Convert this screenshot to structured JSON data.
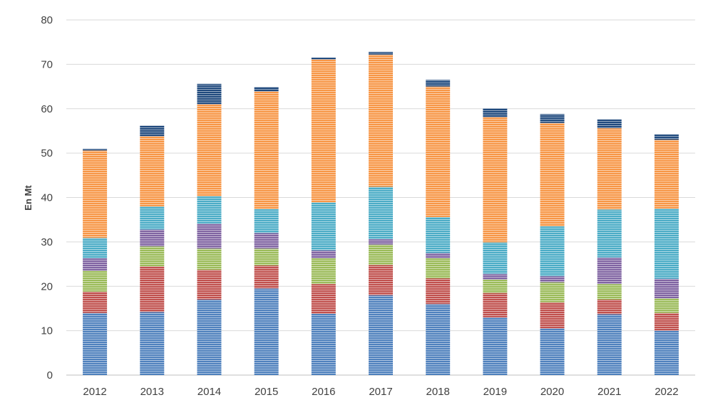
{
  "chart_data": {
    "type": "bar",
    "stacked": true,
    "title": "",
    "xlabel": "",
    "ylabel": "En Mt",
    "ylim": [
      0,
      80
    ],
    "yticks": [
      0,
      10,
      20,
      30,
      40,
      50,
      60,
      70,
      80
    ],
    "grid": true,
    "legend": "none",
    "categories": [
      "2012",
      "2013",
      "2014",
      "2015",
      "2016",
      "2017",
      "2018",
      "2019",
      "2020",
      "2021",
      "2022"
    ],
    "series": [
      {
        "color": "#4f81bd",
        "values": [
          14.0,
          14.2,
          17.0,
          19.5,
          13.8,
          18.0,
          16.0,
          13.0,
          10.5,
          13.7,
          10.0
        ]
      },
      {
        "color": "#c0504d",
        "values": [
          4.8,
          10.3,
          6.7,
          5.2,
          6.7,
          6.8,
          5.8,
          5.5,
          5.9,
          3.3,
          4.0
        ]
      },
      {
        "color": "#9bbb59",
        "values": [
          4.7,
          4.5,
          4.8,
          3.8,
          5.8,
          4.6,
          4.5,
          3.0,
          4.5,
          3.5,
          3.3
        ]
      },
      {
        "color": "#8064a2",
        "values": [
          2.8,
          3.8,
          5.6,
          3.5,
          1.8,
          1.2,
          1.2,
          1.3,
          1.4,
          6.0,
          4.4
        ]
      },
      {
        "color": "#4bacc6",
        "values": [
          4.6,
          5.2,
          6.2,
          5.4,
          10.8,
          11.8,
          8.1,
          7.1,
          11.2,
          10.8,
          15.8
        ]
      },
      {
        "color": "#f79646",
        "values": [
          19.7,
          15.8,
          20.7,
          26.5,
          32.2,
          29.8,
          29.4,
          28.2,
          23.3,
          18.3,
          15.5
        ]
      },
      {
        "color": "#1f497d",
        "values": [
          0.4,
          2.4,
          4.6,
          1.0,
          0.4,
          0.6,
          1.5,
          2.0,
          2.0,
          2.0,
          1.2
        ]
      }
    ]
  }
}
